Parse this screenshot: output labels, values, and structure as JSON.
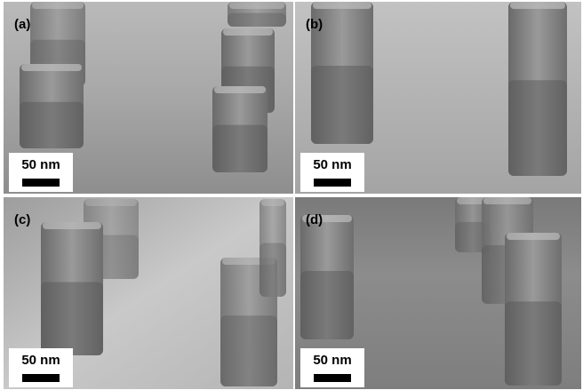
{
  "panels": [
    {
      "label": "(a)",
      "scale_bar": "50 nm"
    },
    {
      "label": "(b)",
      "scale_bar": "50 nm"
    },
    {
      "label": "(c)",
      "scale_bar": "50 nm"
    },
    {
      "label": "(d)",
      "scale_bar": "50 nm"
    }
  ]
}
